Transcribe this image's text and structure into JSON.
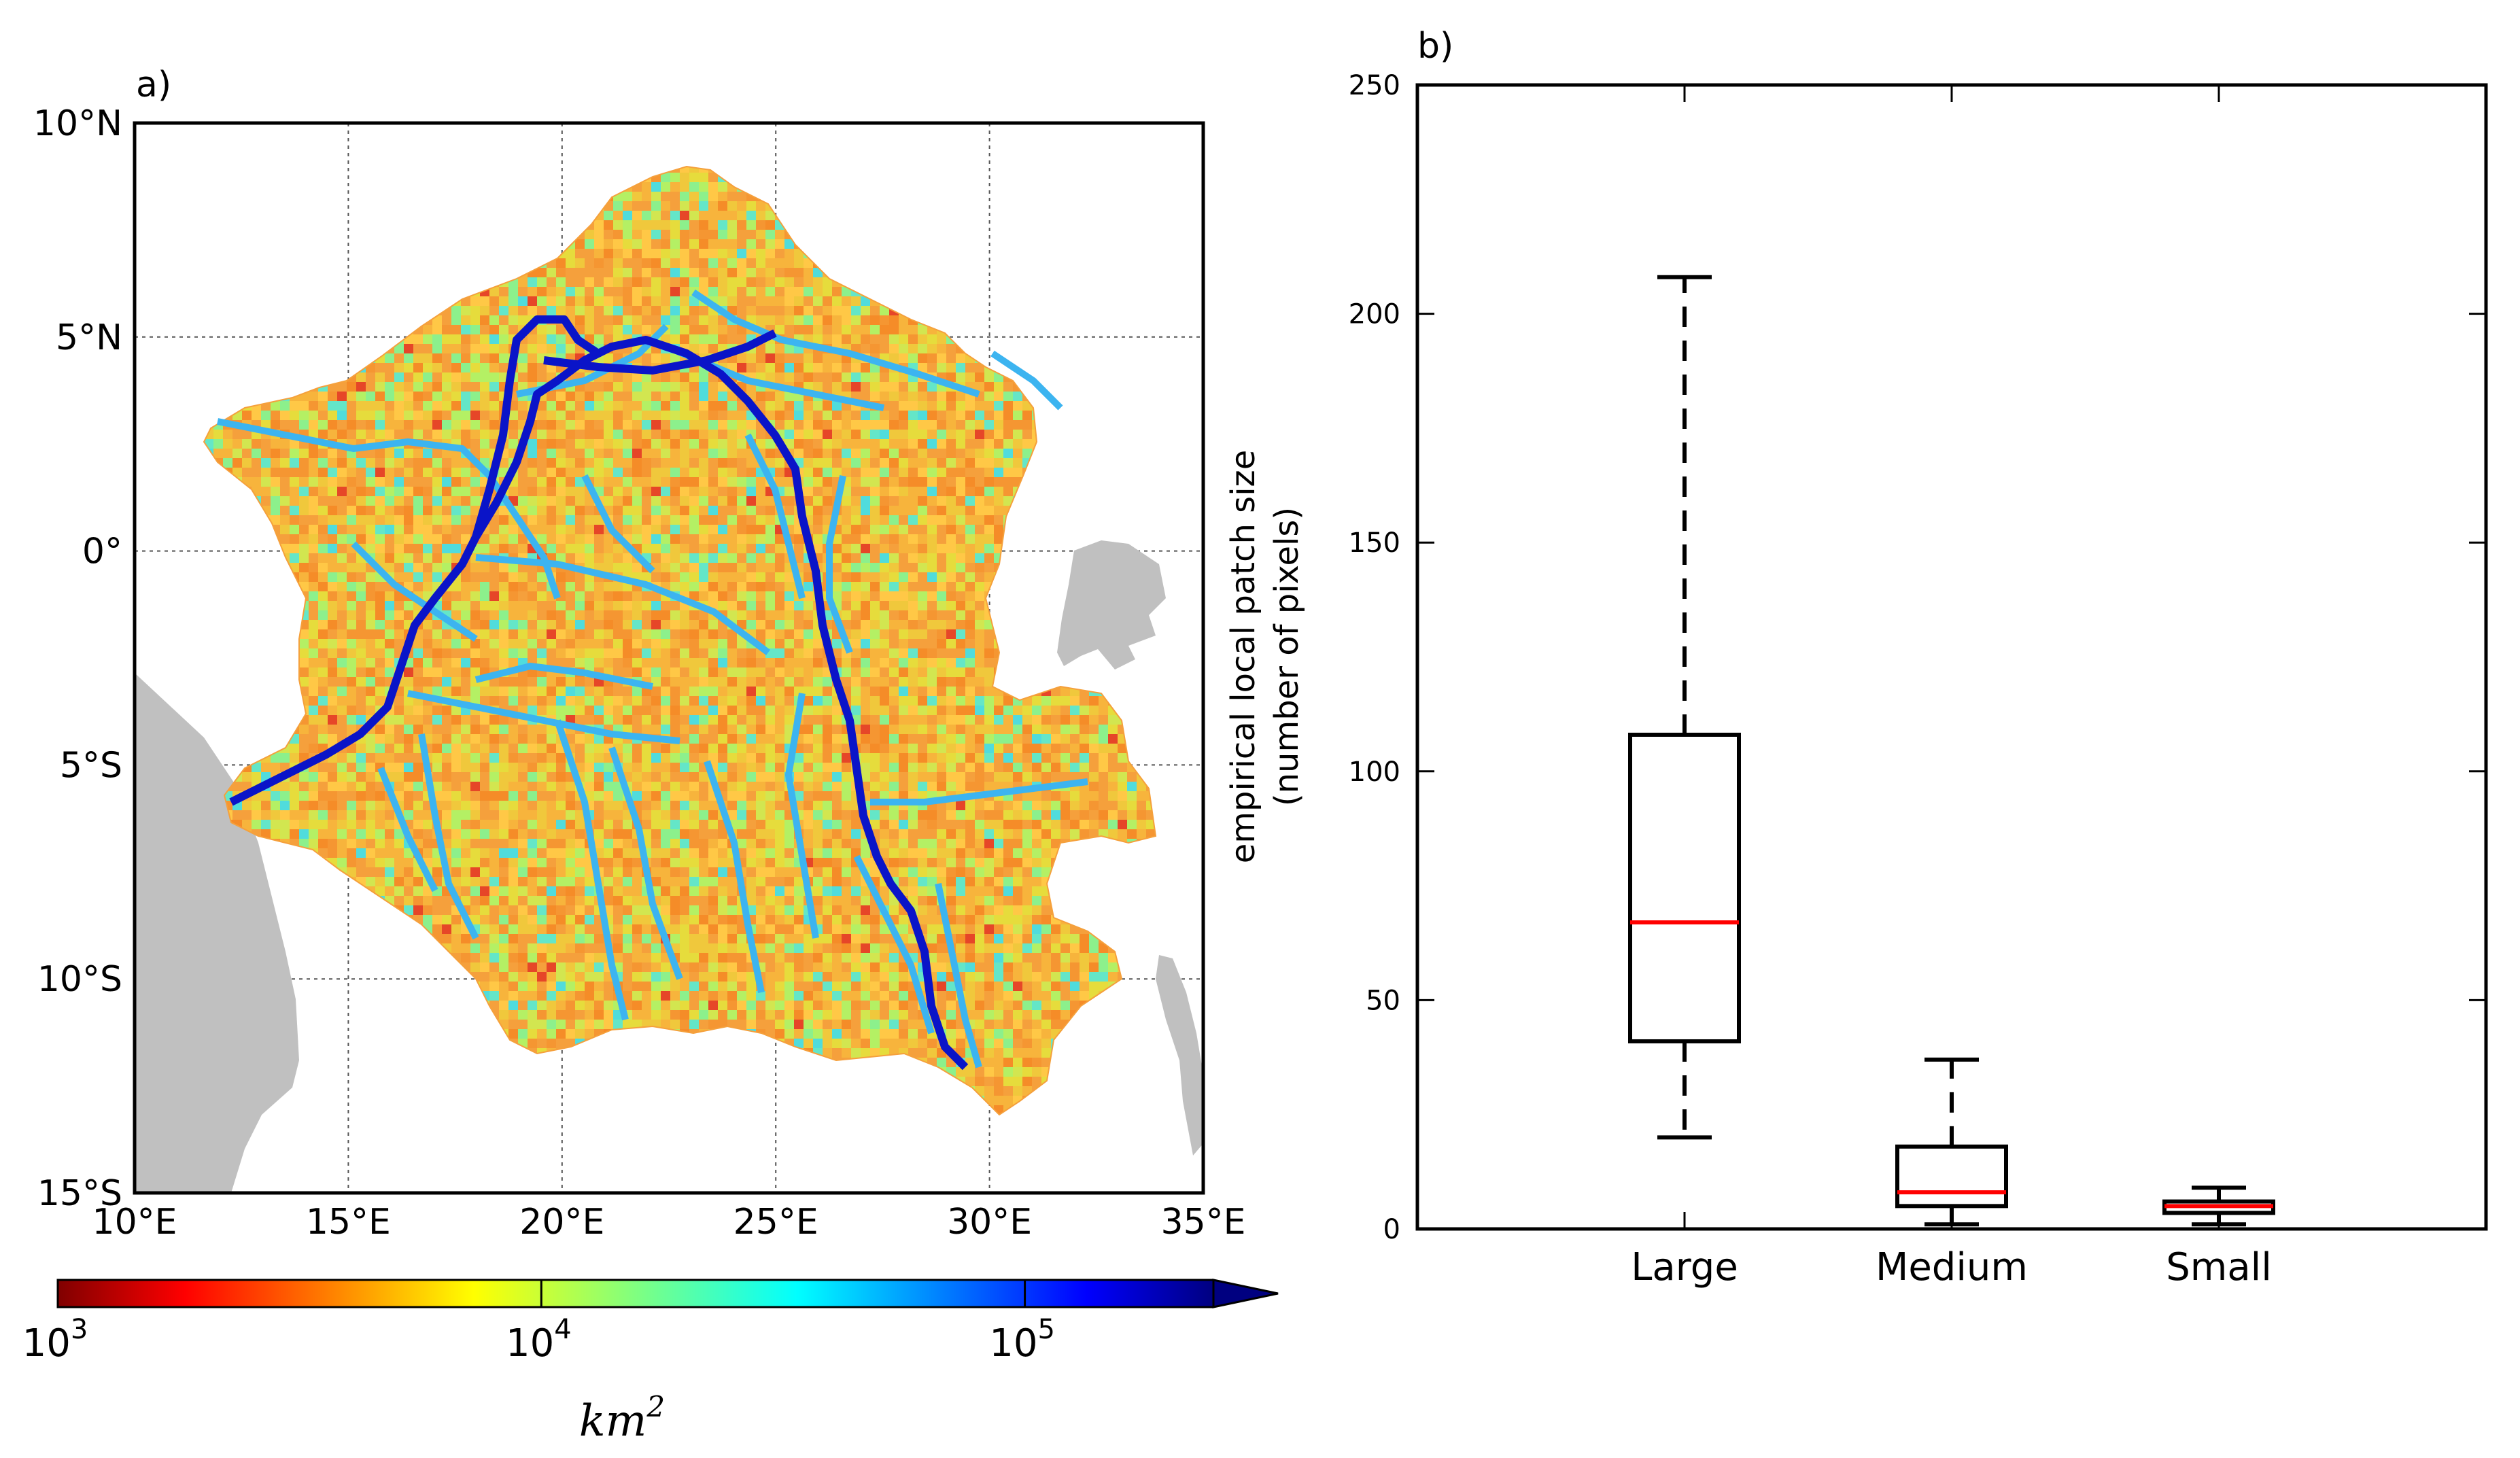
{
  "panel_a": {
    "label": "a)",
    "lat_ticks": [
      "10°N",
      "5°N",
      "0°",
      "5°S",
      "10°S",
      "15°S"
    ],
    "lon_ticks": [
      "10°E",
      "15°E",
      "20°E",
      "25°E",
      "30°E",
      "35°E"
    ],
    "lat_values": [
      10,
      5,
      0,
      -5,
      -10,
      -15
    ],
    "lon_values": [
      10,
      15,
      20,
      25,
      30,
      35
    ],
    "colorbar": {
      "ticks": [
        "10",
        "10",
        "10"
      ],
      "exponents": [
        "3",
        "4",
        "5"
      ],
      "tick_values": [
        1000,
        10000,
        100000
      ],
      "unit": "km",
      "unit_exp": "2",
      "colormap": "jet",
      "scale": "log",
      "extend": "max"
    },
    "colors": {
      "land": "#c0c0c0",
      "main_river": "#0a14c8",
      "tributary": "#3cb4f0"
    }
  },
  "chart_data": {
    "type": "box",
    "label": "b)",
    "categories": [
      "Large",
      "Medium",
      "Small"
    ],
    "ylabel_line1": "empirical local patch size",
    "ylabel_line2": "(number of pixels)",
    "ylim": [
      0,
      250
    ],
    "yticks": [
      0,
      50,
      100,
      150,
      200,
      250
    ],
    "boxes": [
      {
        "name": "Large",
        "whisker_low": 20,
        "q1": 41,
        "median": 67,
        "q3": 108,
        "whisker_high": 208
      },
      {
        "name": "Medium",
        "whisker_low": 1,
        "q1": 5,
        "median": 8,
        "q3": 18,
        "whisker_high": 37
      },
      {
        "name": "Small",
        "whisker_low": 1,
        "q1": 3.5,
        "median": 5,
        "q3": 6,
        "whisker_high": 9
      }
    ],
    "median_color": "#ff0000",
    "grid": false
  }
}
